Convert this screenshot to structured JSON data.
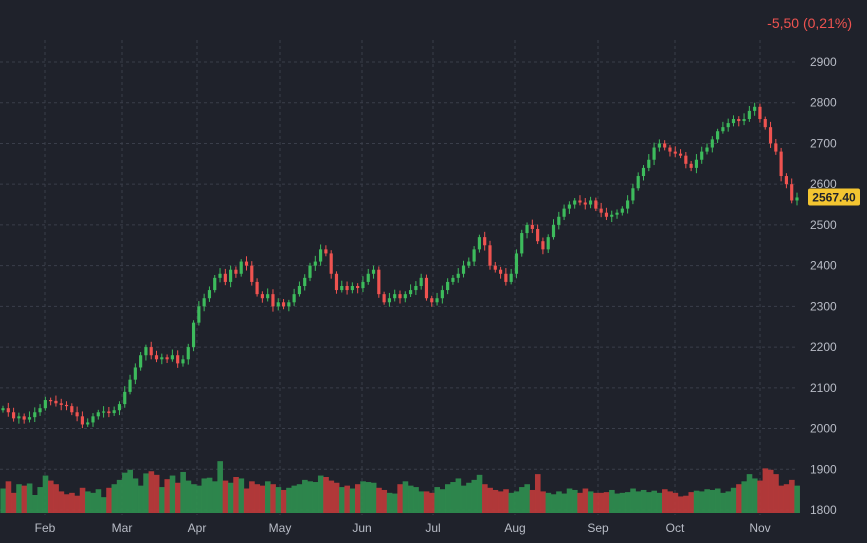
{
  "header": {
    "change_text": "-5,50 (0,21%)"
  },
  "last_price_label": "2567.40",
  "colors": {
    "background": "#1f222b",
    "up": "#26a69a",
    "up_bright": "#3dbb5c",
    "down": "#ef5350",
    "volume_up": "#2e8b4e",
    "volume_down": "#b83a3a",
    "price_tag": "#f3c531",
    "grid": "#3a3e4a",
    "text": "#b8bcc6"
  },
  "chart_data": {
    "type": "candlestick",
    "title": "",
    "y_ticks": [
      "2900",
      "2800",
      "2700",
      "2600",
      "2500",
      "2400",
      "2300",
      "2200",
      "2100",
      "2000",
      "1900",
      "1800"
    ],
    "x_ticks": [
      "Feb",
      "Mar",
      "Apr",
      "May",
      "Jun",
      "Jul",
      "Aug",
      "Sep",
      "Oct",
      "Nov"
    ],
    "ylim": [
      1780,
      2940
    ],
    "grid": true,
    "last_price": 2567.4,
    "close_series": [
      2050,
      2040,
      2025,
      2030,
      2022,
      2028,
      2040,
      2050,
      2070,
      2068,
      2062,
      2058,
      2055,
      2040,
      2030,
      2010,
      2015,
      2030,
      2040,
      2042,
      2038,
      2045,
      2060,
      2090,
      2120,
      2150,
      2180,
      2200,
      2180,
      2170,
      2175,
      2170,
      2180,
      2160,
      2170,
      2200,
      2260,
      2300,
      2320,
      2340,
      2370,
      2380,
      2360,
      2390,
      2380,
      2410,
      2400,
      2360,
      2330,
      2320,
      2330,
      2300,
      2310,
      2300,
      2310,
      2330,
      2350,
      2370,
      2400,
      2410,
      2440,
      2430,
      2380,
      2340,
      2350,
      2340,
      2350,
      2345,
      2360,
      2380,
      2390,
      2330,
      2310,
      2320,
      2330,
      2320,
      2330,
      2340,
      2350,
      2370,
      2320,
      2310,
      2320,
      2340,
      2360,
      2370,
      2380,
      2400,
      2410,
      2440,
      2470,
      2450,
      2400,
      2390,
      2380,
      2360,
      2380,
      2430,
      2480,
      2500,
      2490,
      2460,
      2440,
      2470,
      2500,
      2520,
      2540,
      2550,
      2560,
      2555,
      2550,
      2560,
      2540,
      2530,
      2520,
      2525,
      2530,
      2540,
      2560,
      2590,
      2620,
      2640,
      2660,
      2690,
      2700,
      2690,
      2680,
      2675,
      2670,
      2650,
      2640,
      2660,
      2680,
      2690,
      2710,
      2730,
      2740,
      2750,
      2760,
      2755,
      2760,
      2780,
      2790,
      2760,
      2740,
      2700,
      2680,
      2620,
      2600,
      2560,
      2567.4
    ],
    "volume": [
      34,
      44,
      28,
      40,
      38,
      41,
      25,
      36,
      52,
      45,
      40,
      30,
      26,
      28,
      24,
      35,
      30,
      28,
      33,
      22,
      35,
      40,
      46,
      56,
      60,
      48,
      38,
      55,
      58,
      53,
      36,
      47,
      52,
      42,
      57,
      45,
      40,
      38,
      48,
      49,
      44,
      72,
      45,
      42,
      50,
      48,
      34,
      44,
      40,
      38,
      44,
      40,
      36,
      32,
      35,
      38,
      40,
      46,
      44,
      43,
      52,
      50,
      45,
      42,
      36,
      38,
      34,
      40,
      44,
      43,
      42,
      35,
      32,
      28,
      27,
      40,
      44,
      38,
      36,
      30,
      30,
      28,
      36,
      33,
      40,
      43,
      48,
      38,
      42,
      46,
      53,
      40,
      35,
      32,
      30,
      33,
      28,
      30,
      36,
      40,
      32,
      54,
      30,
      28,
      26,
      30,
      27,
      34,
      32,
      28,
      34,
      30,
      28,
      28,
      29,
      32,
      27,
      28,
      29,
      34,
      30,
      32,
      29,
      31,
      28,
      33,
      30,
      28,
      23,
      24,
      29,
      31,
      30,
      33,
      32,
      34,
      28,
      30,
      35,
      40,
      44,
      54,
      48,
      45,
      62,
      60,
      54,
      38,
      40,
      46,
      38
    ]
  }
}
